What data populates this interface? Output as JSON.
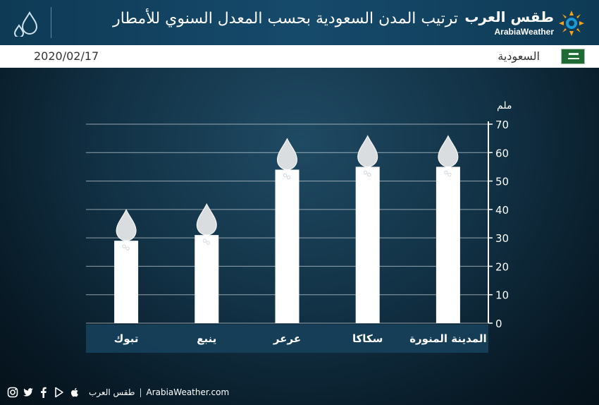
{
  "header": {
    "title": "ترتيب المدن السعودية بحسب المعدل السنوي للأمطار",
    "brand_ar": "طقس العرب",
    "brand_en": "ArabiaWeather"
  },
  "subheader": {
    "date": "2020/02/17",
    "country": "السعودية"
  },
  "footer": {
    "brand_ar": "طقس العرب",
    "site": "ArabiaWeather.com",
    "separator": "|"
  },
  "colors": {
    "header_bg": "#164a6b",
    "bar": "#ffffff",
    "label_band": "#17405a",
    "flag": "#1f6b35"
  },
  "chart_data": {
    "type": "bar",
    "categories": [
      "المدينة المنورة",
      "سكاكا",
      "عرعر",
      "ينبع",
      "تبوك"
    ],
    "values": [
      55,
      55,
      54,
      31,
      29
    ],
    "ylabel": "ملم",
    "ylim": [
      0,
      70
    ],
    "yticks": [
      0,
      10,
      20,
      30,
      40,
      50,
      60,
      70
    ],
    "grid": true,
    "y_axis_side": "right",
    "marker_icon": "raindrop-icon"
  }
}
